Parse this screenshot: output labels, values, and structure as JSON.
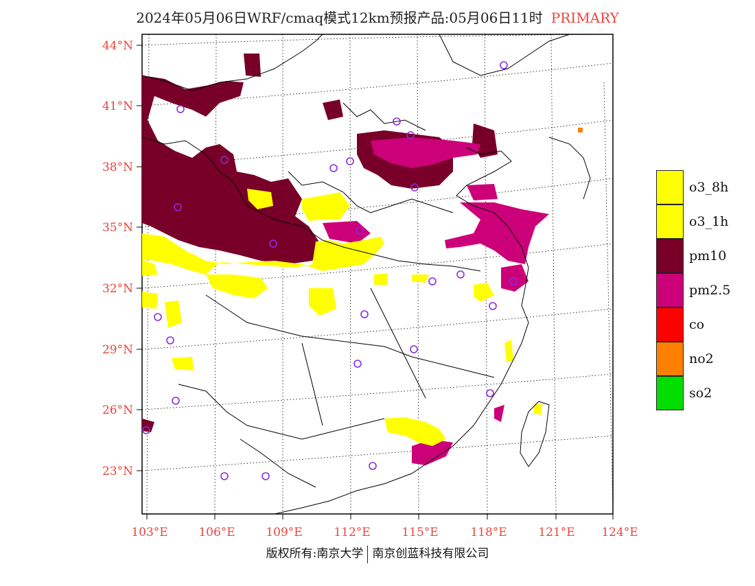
{
  "title": {
    "main": "2024年05月06日WRF/cmaq模式12km预报产品:05月06日11时",
    "tag": "PRIMARY"
  },
  "axes": {
    "lat_labels": [
      "44°N",
      "41°N",
      "38°N",
      "35°N",
      "32°N",
      "29°N",
      "26°N",
      "23°N"
    ],
    "lon_labels": [
      "103°E",
      "106°E",
      "109°E",
      "112°E",
      "115°E",
      "118°E",
      "121°E",
      "124°E"
    ]
  },
  "legend": [
    {
      "label": "o3_8h",
      "color": "#ffff00"
    },
    {
      "label": "o3_1h",
      "color": "#ffff00"
    },
    {
      "label": "pm10",
      "color": "#780028"
    },
    {
      "label": "pm2.5",
      "color": "#cc0078"
    },
    {
      "label": "co",
      "color": "#ff0000"
    },
    {
      "label": "no2",
      "color": "#ff7f00"
    },
    {
      "label": "so2",
      "color": "#00dd00"
    }
  ],
  "footer": {
    "left": "版权所有:南京大学",
    "right": "南京创蓝科技有限公司"
  }
}
